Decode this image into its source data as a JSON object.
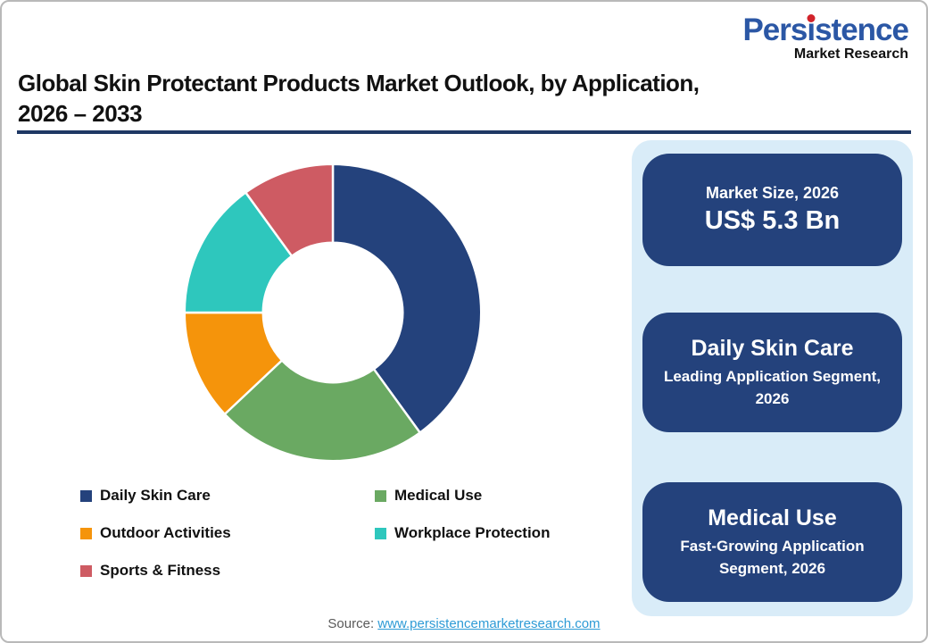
{
  "brand": {
    "name_part1": "Pers",
    "name_i": "i",
    "name_part2": "stence",
    "subtitle": "Market Research",
    "blue": "#2B57A5",
    "red": "#D2232A"
  },
  "title": {
    "line1": "Global Skin Protectant Products Market Outlook, by Application,",
    "line2": "2026 – 2033"
  },
  "chart_data": {
    "type": "pie",
    "subtype": "donut",
    "title": "Global Skin Protectant Products Market Outlook, by Application, 2026 – 2033",
    "categories": [
      "Daily Skin Care",
      "Medical Use",
      "Outdoor Activities",
      "Workplace Protection",
      "Sports & Fitness"
    ],
    "values": [
      40,
      23,
      12,
      15,
      10
    ],
    "unit": "percent-share (estimated from arc angles)",
    "colors": [
      "#24427C",
      "#6AA962",
      "#F5940B",
      "#2EC7BD",
      "#CE5B63"
    ],
    "start_angle_deg": 0,
    "direction": "clockwise",
    "inner_radius_ratio": 0.47,
    "legend_position": "bottom"
  },
  "sidebar": {
    "bg": "#D9ECF8",
    "box_bg": "#24427C",
    "boxes": [
      {
        "line1": "Market Size, 2026",
        "line2": "US$ 5.3 Bn"
      },
      {
        "line1": "Daily Skin Care",
        "line2": "Leading Application Segment, 2026"
      },
      {
        "line1": "Medical Use",
        "line2": "Fast-Growing Application Segment, 2026"
      }
    ]
  },
  "footer": {
    "source_label": "Source:",
    "source_link": "www.persistencemarketresearch.com"
  }
}
